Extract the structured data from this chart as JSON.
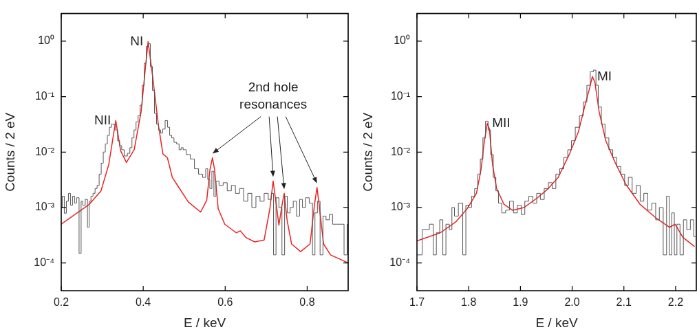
{
  "chart_data": [
    {
      "type": "line",
      "xlabel": "E / keV",
      "ylabel": "Counts / 2 eV",
      "log": true,
      "grid": false,
      "legend": false,
      "marker": "none",
      "xlim": [
        0.2,
        0.9
      ],
      "xticks": [
        0.2,
        0.4,
        0.6,
        0.8
      ],
      "ylim": [
        3.16e-05,
        3.16
      ],
      "yticks": [
        {
          "value": 0.0001,
          "label": "10⁻⁴"
        },
        {
          "value": 0.001,
          "label": "10⁻³"
        },
        {
          "value": 0.01,
          "label": "10⁻²"
        },
        {
          "value": 0.1,
          "label": "10⁻¹"
        },
        {
          "value": 1,
          "label": "10⁰"
        }
      ],
      "annotations": [
        {
          "text": "NII",
          "x": 0.333,
          "y": 0.037
        },
        {
          "text": "NI",
          "x": 0.412,
          "y": 0.98
        },
        "2nd hole resonances"
      ],
      "series": [
        {
          "type": "step",
          "color": "#555555",
          "x": [
            0.2,
            0.205,
            0.21,
            0.215,
            0.22,
            0.225,
            0.23,
            0.235,
            0.24,
            0.247,
            0.25,
            0.255,
            0.262,
            0.266,
            0.27,
            0.275,
            0.28,
            0.285,
            0.29,
            0.295,
            0.3,
            0.305,
            0.31,
            0.315,
            0.32,
            0.325,
            0.33,
            0.335,
            0.34,
            0.345,
            0.35,
            0.358,
            0.365,
            0.37,
            0.375,
            0.38,
            0.385,
            0.39,
            0.395,
            0.4,
            0.405,
            0.41,
            0.415,
            0.42,
            0.425,
            0.43,
            0.435,
            0.44,
            0.445,
            0.45,
            0.457,
            0.462,
            0.467,
            0.472,
            0.478,
            0.485,
            0.49,
            0.495,
            0.5,
            0.51,
            0.52,
            0.53,
            0.54,
            0.55,
            0.555,
            0.56,
            0.565,
            0.57,
            0.575,
            0.58,
            0.59,
            0.6,
            0.61,
            0.62,
            0.63,
            0.64,
            0.65,
            0.66,
            0.67,
            0.68,
            0.69,
            0.7,
            0.71,
            0.715,
            0.721,
            0.727,
            0.735,
            0.742,
            0.748,
            0.755,
            0.762,
            0.77,
            0.778,
            0.785,
            0.792,
            0.8,
            0.81,
            0.816,
            0.822,
            0.828,
            0.835,
            0.842,
            0.85,
            0.858,
            0.866,
            0.875,
            0.885,
            0.895,
            0.9
          ],
          "values": [
            0.001,
            0.0016,
            0.00079,
            0.0013,
            0.0018,
            0.0011,
            0.0016,
            0.0012,
            0.0015,
            0.00015,
            0.0013,
            0.0011,
            0.0014,
            0.00044,
            0.0013,
            0.0016,
            0.0018,
            0.0022,
            0.0025,
            0.004,
            0.0063,
            0.01,
            0.014,
            0.02,
            0.028,
            0.032,
            0.031,
            0.025,
            0.016,
            0.013,
            0.011,
            0.0085,
            0.0095,
            0.012,
            0.018,
            0.025,
            0.035,
            0.045,
            0.07,
            0.16,
            0.4,
            0.8,
            0.9,
            0.35,
            0.13,
            0.05,
            0.032,
            0.025,
            0.022,
            0.026,
            0.037,
            0.028,
            0.02,
            0.018,
            0.015,
            0.014,
            0.011,
            0.012,
            0.011,
            0.009,
            0.0075,
            0.005,
            0.004,
            0.0035,
            0.005,
            0.0032,
            0.0022,
            0.0045,
            0.0016,
            0.003,
            0.0025,
            0.0028,
            0.002,
            0.0025,
            0.0018,
            0.0022,
            0.0013,
            0.0018,
            0.001,
            0.0016,
            0.0013,
            0.0018,
            0.0014,
            0.0018,
            0.00014,
            0.0015,
            0.001,
            0.00014,
            0.0016,
            0.0008,
            0.001,
            0.0013,
            0.0007,
            0.0014,
            0.001,
            0.0015,
            0.0012,
            0.00014,
            0.0008,
            0.0013,
            0.00014,
            0.0007,
            0.0006,
            0.00075,
            0.0005,
            0.0005,
            0.0005,
            0.00014,
            0.0005
          ]
        },
        {
          "color": "#ee2222",
          "x": [
            0.2,
            0.269,
            0.297,
            0.316,
            0.333,
            0.345,
            0.359,
            0.378,
            0.395,
            0.406,
            0.412,
            0.423,
            0.437,
            0.448,
            0.459,
            0.471,
            0.487,
            0.51,
            0.54,
            0.555,
            0.563,
            0.569,
            0.574,
            0.583,
            0.599,
            0.627,
            0.637,
            0.65,
            0.672,
            0.695,
            0.709,
            0.717,
            0.726,
            0.731,
            0.739,
            0.744,
            0.751,
            0.762,
            0.784,
            0.807,
            0.818,
            0.824,
            0.829,
            0.84,
            0.857,
            0.9
          ],
          "values": [
            0.0005,
            0.00115,
            0.002,
            0.006,
            0.037,
            0.0105,
            0.0065,
            0.011,
            0.054,
            0.37,
            0.98,
            0.23,
            0.031,
            0.0093,
            0.0079,
            0.0035,
            0.0023,
            0.00126,
            0.00083,
            0.00135,
            0.0049,
            0.0079,
            0.0049,
            0.00095,
            0.0005,
            0.00035,
            0.00038,
            0.00029,
            0.00024,
            0.00026,
            0.00095,
            0.003,
            0.00095,
            0.00048,
            0.00115,
            0.0018,
            0.00059,
            0.00022,
            0.00016,
            0.00022,
            0.00115,
            0.0023,
            0.00115,
            0.00022,
            0.00014,
            0.0001
          ]
        }
      ]
    },
    {
      "type": "line",
      "xlabel": "E / keV",
      "ylabel": "Counts / 2 eV",
      "log": true,
      "grid": false,
      "legend": false,
      "marker": "none",
      "xlim": [
        1.7,
        2.24
      ],
      "xticks": [
        1.7,
        1.8,
        1.9,
        {
          "value": 2,
          "label": "2.0"
        },
        2.1,
        2.2
      ],
      "ylim": [
        3.16e-05,
        3.16
      ],
      "yticks": [
        {
          "value": 0.0001,
          "label": "10⁻⁴"
        },
        {
          "value": 0.001,
          "label": "10⁻³"
        },
        {
          "value": 0.01,
          "label": "10⁻²"
        },
        {
          "value": 0.1,
          "label": "10⁻¹"
        },
        {
          "value": 1,
          "label": "10⁰"
        }
      ],
      "annotations": [
        {
          "text": "MII",
          "x": 1.836,
          "y": 0.033
        },
        {
          "text": "MI",
          "x": 2.039,
          "y": 0.23
        }
      ],
      "series": [
        {
          "type": "step",
          "color": "#555555",
          "x": [
            1.7,
            1.72,
            1.728,
            1.735,
            1.74,
            1.748,
            1.752,
            1.76,
            1.765,
            1.77,
            1.775,
            1.785,
            1.792,
            1.797,
            1.803,
            1.808,
            1.815,
            1.82,
            1.825,
            1.83,
            1.835,
            1.84,
            1.845,
            1.85,
            1.855,
            1.86,
            1.868,
            1.875,
            1.883,
            1.89,
            1.898,
            1.905,
            1.912,
            1.92,
            1.928,
            1.935,
            1.942,
            1.95,
            1.958,
            1.965,
            1.972,
            1.98,
            1.988,
            1.995,
            2.002,
            2.01,
            2.018,
            2.025,
            2.032,
            2.038,
            2.044,
            2.048,
            2.053,
            2.06,
            2.067,
            2.075,
            2.082,
            2.09,
            2.098,
            2.105,
            2.112,
            2.12,
            2.128,
            2.135,
            2.142,
            2.15,
            2.158,
            2.165,
            2.172,
            2.18,
            2.185,
            2.19,
            2.195,
            2.2,
            2.205,
            2.212,
            2.218,
            2.225,
            2.232,
            2.238
          ],
          "values": [
            0.00014,
            0.0004,
            0.0005,
            0.00014,
            0.00035,
            0.0006,
            0.00014,
            0.0005,
            0.0004,
            0.001,
            0.0007,
            0.0012,
            0.00014,
            0.0011,
            0.001,
            0.0016,
            0.0022,
            0.004,
            0.0075,
            0.018,
            0.036,
            0.025,
            0.009,
            0.0035,
            0.002,
            0.0012,
            0.0008,
            0.0009,
            0.0013,
            0.0008,
            0.0011,
            0.00075,
            0.0013,
            0.0016,
            0.0012,
            0.0018,
            0.0014,
            0.0022,
            0.0028,
            0.0022,
            0.004,
            0.005,
            0.008,
            0.011,
            0.016,
            0.028,
            0.045,
            0.08,
            0.16,
            0.28,
            0.3,
            0.16,
            0.065,
            0.032,
            0.018,
            0.011,
            0.008,
            0.0055,
            0.004,
            0.0025,
            0.0035,
            0.0018,
            0.0025,
            0.0013,
            0.0018,
            0.0009,
            0.0012,
            0.0006,
            0.001,
            0.00014,
            0.0016,
            0.00014,
            0.0008,
            0.00014,
            0.0005,
            0.00014,
            0.0006,
            0.0004,
            0.0006,
            0.0003
          ]
        },
        {
          "color": "#ee2222",
          "x": [
            1.7,
            1.745,
            1.775,
            1.797,
            1.815,
            1.824,
            1.83,
            1.836,
            1.84,
            1.846,
            1.854,
            1.868,
            1.885,
            1.907,
            1.933,
            1.954,
            1.973,
            1.995,
            2.012,
            2.025,
            2.034,
            2.039,
            2.044,
            2.052,
            2.065,
            2.083,
            2.104,
            2.131,
            2.161,
            2.188,
            2.199,
            2.214,
            2.236
          ],
          "values": [
            0.00025,
            0.00035,
            0.00055,
            0.00095,
            0.0018,
            0.0049,
            0.015,
            0.033,
            0.026,
            0.006,
            0.0022,
            0.00115,
            0.00089,
            0.001,
            0.0015,
            0.0022,
            0.0035,
            0.0093,
            0.023,
            0.071,
            0.145,
            0.23,
            0.18,
            0.054,
            0.016,
            0.0065,
            0.0026,
            0.00115,
            0.00066,
            0.00044,
            0.0005,
            0.00029,
            0.0002
          ]
        }
      ]
    }
  ]
}
